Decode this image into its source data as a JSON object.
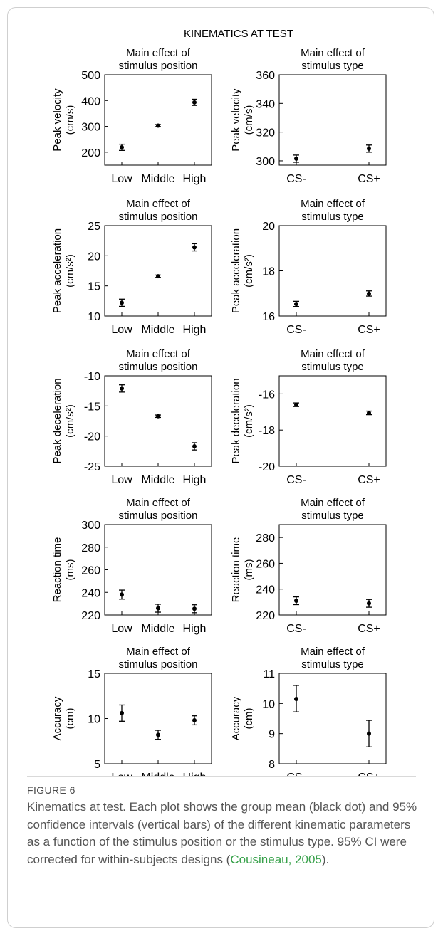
{
  "figure_title": "KINEMATICS AT TEST",
  "figure_label": "FIGURE 6",
  "caption": {
    "text_before": "Kinematics at test. Each plot shows the group mean (black dot) and 95% confidence intervals (vertical bars) of the different kinematic parameters as a function of the stimulus position or the stimulus type. 95% CI were corrected for within-subjects designs (",
    "reference": "Cousineau, 2005",
    "text_after": ")."
  },
  "colors": {
    "reference_link": "#37a14a",
    "marker": "#000000"
  },
  "chart_data": [
    {
      "type": "scatter",
      "title": [
        "Main effect of",
        "stimulus position"
      ],
      "ylabel": [
        "Peak velocity",
        "(cm/s)"
      ],
      "categories": [
        "Low",
        "Middle",
        "High"
      ],
      "ylim": [
        150,
        500
      ],
      "yticks": [
        "200",
        "300",
        "400",
        "500"
      ],
      "mean": [
        219,
        303,
        393
      ],
      "ci_low": [
        207,
        299,
        381
      ],
      "ci_high": [
        231,
        307,
        405
      ]
    },
    {
      "type": "scatter",
      "title": [
        "Main effect of",
        "stimulus type"
      ],
      "ylabel": [
        "Peak velocity",
        "(cm/s)"
      ],
      "categories": [
        "CS-",
        "CS+"
      ],
      "ylim": [
        297,
        360
      ],
      "yticks": [
        "300",
        "320",
        "340",
        "360"
      ],
      "mean": [
        301.5,
        308.5
      ],
      "ci_low": [
        299,
        306
      ],
      "ci_high": [
        304,
        311
      ]
    },
    {
      "type": "scatter",
      "title": [
        "Main effect of",
        "stimulus position"
      ],
      "ylabel": [
        "Peak acceleration",
        "(cm/s²)"
      ],
      "categories": [
        "Low",
        "Middle",
        "High"
      ],
      "ylim": [
        10,
        25
      ],
      "yticks": [
        "10",
        "15",
        "20",
        "25"
      ],
      "mean": [
        12.2,
        16.6,
        21.4
      ],
      "ci_low": [
        11.6,
        16.4,
        20.8
      ],
      "ci_high": [
        12.8,
        16.8,
        22.0
      ]
    },
    {
      "type": "scatter",
      "title": [
        "Main effect of",
        "stimulus type"
      ],
      "ylabel": [
        "Peak acceleration",
        "(cm/s²)"
      ],
      "categories": [
        "CS-",
        "CS+"
      ],
      "ylim": [
        16,
        20
      ],
      "yticks": [
        "16",
        "18",
        "20"
      ],
      "mean": [
        16.53,
        16.99
      ],
      "ci_low": [
        16.42,
        16.88
      ],
      "ci_high": [
        16.65,
        17.11
      ]
    },
    {
      "type": "scatter",
      "title": [
        "Main effect of",
        "stimulus position"
      ],
      "ylabel": [
        "Peak deceleration",
        "(cm/s²)"
      ],
      "categories": [
        "Low",
        "Middle",
        "High"
      ],
      "ylim": [
        -25,
        -10
      ],
      "yticks": [
        "-25",
        "-20",
        "-15",
        "-10"
      ],
      "mean": [
        -12.1,
        -16.7,
        -21.7
      ],
      "ci_low": [
        -12.7,
        -16.9,
        -22.3
      ],
      "ci_high": [
        -11.5,
        -16.5,
        -21.1
      ]
    },
    {
      "type": "scatter",
      "title": [
        "Main effect of",
        "stimulus type"
      ],
      "ylabel": [
        "Peak deceleration",
        "(cm/s²)"
      ],
      "categories": [
        "CS-",
        "CS+"
      ],
      "ylim": [
        -20,
        -15
      ],
      "yticks": [
        "-20",
        "-18",
        "-16"
      ],
      "mean": [
        -16.6,
        -17.05
      ],
      "ci_low": [
        -16.7,
        -17.15
      ],
      "ci_high": [
        -16.5,
        -16.95
      ]
    },
    {
      "type": "scatter",
      "title": [
        "Main effect of",
        "stimulus position"
      ],
      "ylabel": [
        "Reaction time",
        "(ms)"
      ],
      "categories": [
        "Low",
        "Middle",
        "High"
      ],
      "ylim": [
        220,
        300
      ],
      "yticks": [
        "220",
        "240",
        "260",
        "280",
        "300"
      ],
      "mean": [
        238,
        226,
        225.5
      ],
      "ci_low": [
        234,
        222.5,
        222
      ],
      "ci_high": [
        242,
        229.5,
        229
      ]
    },
    {
      "type": "scatter",
      "title": [
        "Main effect of",
        "stimulus type"
      ],
      "ylabel": [
        "Reaction time",
        "(ms)"
      ],
      "categories": [
        "CS-",
        "CS+"
      ],
      "ylim": [
        220,
        290
      ],
      "yticks": [
        "220",
        "240",
        "260",
        "280"
      ],
      "mean": [
        231,
        229
      ],
      "ci_low": [
        228,
        226
      ],
      "ci_high": [
        234,
        232
      ]
    },
    {
      "type": "scatter",
      "title": [
        "Main effect of",
        "stimulus position"
      ],
      "ylabel": [
        "Accuracy",
        "(cm)"
      ],
      "categories": [
        "Low",
        "Middle",
        "High"
      ],
      "ylim": [
        5,
        15
      ],
      "yticks": [
        "5",
        "10",
        "15"
      ],
      "mean": [
        10.6,
        8.2,
        9.8
      ],
      "ci_low": [
        9.7,
        7.7,
        9.3
      ],
      "ci_high": [
        11.5,
        8.7,
        10.3
      ]
    },
    {
      "type": "scatter",
      "title": [
        "Main effect of",
        "stimulus type"
      ],
      "ylabel": [
        "Accuracy",
        "(cm)"
      ],
      "categories": [
        "CS-",
        "CS+"
      ],
      "ylim": [
        8,
        11
      ],
      "yticks": [
        "8",
        "9",
        "10",
        "11"
      ],
      "mean": [
        10.15,
        9.0
      ],
      "ci_low": [
        9.72,
        8.56
      ],
      "ci_high": [
        10.6,
        9.44
      ]
    }
  ]
}
